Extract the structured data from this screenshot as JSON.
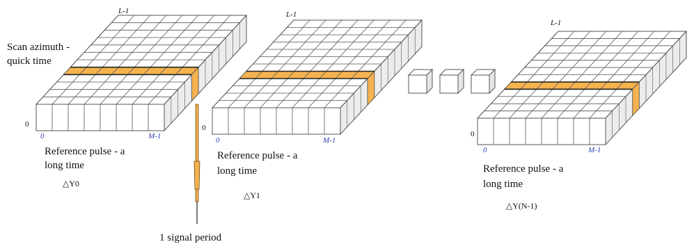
{
  "diagram": {
    "scan_label_line1": "Scan azimuth -",
    "scan_label_line2": "quick time",
    "signal_label": "1 signal period",
    "highlight_color": "#f5b24f",
    "grid_line_color": "#555555",
    "blocks": [
      {
        "id": "block-0",
        "top_label": "L-1",
        "origin_label": "0",
        "axis_start": "0",
        "axis_end": "M-1",
        "ref_line1": "Reference pulse - a",
        "ref_line2": "long time",
        "delta_label": "△Y0"
      },
      {
        "id": "block-1",
        "top_label": "L-1",
        "origin_label": "0",
        "axis_start": "0",
        "axis_end": "M-1",
        "ref_line1": "Reference pulse - a",
        "ref_line2": "long time",
        "delta_label": "△Y1"
      },
      {
        "id": "block-n",
        "top_label": "L-1",
        "origin_label": "0",
        "axis_start": "0",
        "axis_end": "M-1",
        "ref_line1": "Reference pulse - a",
        "ref_line2": "long time",
        "delta_label": "△Y(N-1)"
      }
    ],
    "ellipsis_cube_count": 3
  }
}
